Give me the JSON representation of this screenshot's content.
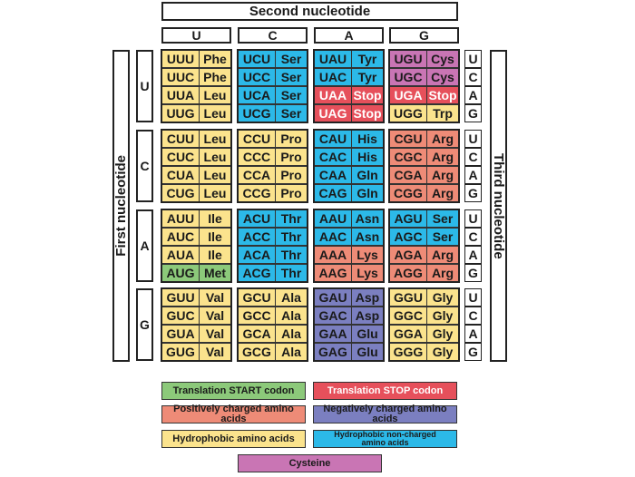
{
  "title": {
    "second": "Second nucleotide",
    "first": "First nucleotide",
    "third": "Third nucleotide"
  },
  "nucleotides": [
    "U",
    "C",
    "A",
    "G"
  ],
  "colors": {
    "hydrophobic": "#fbe38d",
    "polar": "#2cb9e8",
    "stop": "#e6505b",
    "positive": "#ee8b77",
    "negative": "#7b7fc0",
    "start": "#8cc97a",
    "cysteine": "#c975b4"
  },
  "table": [
    {
      "first": "U",
      "rows": [
        [
          {
            "codon": "UUU",
            "aa": "Phe",
            "cat": "hydrophobic"
          },
          {
            "codon": "UCU",
            "aa": "Ser",
            "cat": "polar"
          },
          {
            "codon": "UAU",
            "aa": "Tyr",
            "cat": "polar"
          },
          {
            "codon": "UGU",
            "aa": "Cys",
            "cat": "cysteine"
          }
        ],
        [
          {
            "codon": "UUC",
            "aa": "Phe",
            "cat": "hydrophobic"
          },
          {
            "codon": "UCC",
            "aa": "Ser",
            "cat": "polar"
          },
          {
            "codon": "UAC",
            "aa": "Tyr",
            "cat": "polar"
          },
          {
            "codon": "UGC",
            "aa": "Cys",
            "cat": "cysteine"
          }
        ],
        [
          {
            "codon": "UUA",
            "aa": "Leu",
            "cat": "hydrophobic"
          },
          {
            "codon": "UCA",
            "aa": "Ser",
            "cat": "polar"
          },
          {
            "codon": "UAA",
            "aa": "Stop",
            "cat": "stop"
          },
          {
            "codon": "UGA",
            "aa": "Stop",
            "cat": "stop"
          }
        ],
        [
          {
            "codon": "UUG",
            "aa": "Leu",
            "cat": "hydrophobic"
          },
          {
            "codon": "UCG",
            "aa": "Ser",
            "cat": "polar"
          },
          {
            "codon": "UAG",
            "aa": "Stop",
            "cat": "stop"
          },
          {
            "codon": "UGG",
            "aa": "Trp",
            "cat": "hydrophobic"
          }
        ]
      ]
    },
    {
      "first": "C",
      "rows": [
        [
          {
            "codon": "CUU",
            "aa": "Leu",
            "cat": "hydrophobic"
          },
          {
            "codon": "CCU",
            "aa": "Pro",
            "cat": "hydrophobic"
          },
          {
            "codon": "CAU",
            "aa": "His",
            "cat": "polar"
          },
          {
            "codon": "CGU",
            "aa": "Arg",
            "cat": "positive"
          }
        ],
        [
          {
            "codon": "CUC",
            "aa": "Leu",
            "cat": "hydrophobic"
          },
          {
            "codon": "CCC",
            "aa": "Pro",
            "cat": "hydrophobic"
          },
          {
            "codon": "CAC",
            "aa": "His",
            "cat": "polar"
          },
          {
            "codon": "CGC",
            "aa": "Arg",
            "cat": "positive"
          }
        ],
        [
          {
            "codon": "CUA",
            "aa": "Leu",
            "cat": "hydrophobic"
          },
          {
            "codon": "CCA",
            "aa": "Pro",
            "cat": "hydrophobic"
          },
          {
            "codon": "CAA",
            "aa": "Gln",
            "cat": "polar"
          },
          {
            "codon": "CGA",
            "aa": "Arg",
            "cat": "positive"
          }
        ],
        [
          {
            "codon": "CUG",
            "aa": "Leu",
            "cat": "hydrophobic"
          },
          {
            "codon": "CCG",
            "aa": "Pro",
            "cat": "hydrophobic"
          },
          {
            "codon": "CAG",
            "aa": "Gln",
            "cat": "polar"
          },
          {
            "codon": "CGG",
            "aa": "Arg",
            "cat": "positive"
          }
        ]
      ]
    },
    {
      "first": "A",
      "rows": [
        [
          {
            "codon": "AUU",
            "aa": "Ile",
            "cat": "hydrophobic"
          },
          {
            "codon": "ACU",
            "aa": "Thr",
            "cat": "polar"
          },
          {
            "codon": "AAU",
            "aa": "Asn",
            "cat": "polar"
          },
          {
            "codon": "AGU",
            "aa": "Ser",
            "cat": "polar"
          }
        ],
        [
          {
            "codon": "AUC",
            "aa": "Ile",
            "cat": "hydrophobic"
          },
          {
            "codon": "ACC",
            "aa": "Thr",
            "cat": "polar"
          },
          {
            "codon": "AAC",
            "aa": "Asn",
            "cat": "polar"
          },
          {
            "codon": "AGC",
            "aa": "Ser",
            "cat": "polar"
          }
        ],
        [
          {
            "codon": "AUA",
            "aa": "Ile",
            "cat": "hydrophobic"
          },
          {
            "codon": "ACA",
            "aa": "Thr",
            "cat": "polar"
          },
          {
            "codon": "AAA",
            "aa": "Lys",
            "cat": "positive"
          },
          {
            "codon": "AGA",
            "aa": "Arg",
            "cat": "positive"
          }
        ],
        [
          {
            "codon": "AUG",
            "aa": "Met",
            "cat": "start"
          },
          {
            "codon": "ACG",
            "aa": "Thr",
            "cat": "polar"
          },
          {
            "codon": "AAG",
            "aa": "Lys",
            "cat": "positive"
          },
          {
            "codon": "AGG",
            "aa": "Arg",
            "cat": "positive"
          }
        ]
      ]
    },
    {
      "first": "G",
      "rows": [
        [
          {
            "codon": "GUU",
            "aa": "Val",
            "cat": "hydrophobic"
          },
          {
            "codon": "GCU",
            "aa": "Ala",
            "cat": "hydrophobic"
          },
          {
            "codon": "GAU",
            "aa": "Asp",
            "cat": "negative"
          },
          {
            "codon": "GGU",
            "aa": "Gly",
            "cat": "hydrophobic"
          }
        ],
        [
          {
            "codon": "GUC",
            "aa": "Val",
            "cat": "hydrophobic"
          },
          {
            "codon": "GCC",
            "aa": "Ala",
            "cat": "hydrophobic"
          },
          {
            "codon": "GAC",
            "aa": "Asp",
            "cat": "negative"
          },
          {
            "codon": "GGC",
            "aa": "Gly",
            "cat": "hydrophobic"
          }
        ],
        [
          {
            "codon": "GUA",
            "aa": "Val",
            "cat": "hydrophobic"
          },
          {
            "codon": "GCA",
            "aa": "Ala",
            "cat": "hydrophobic"
          },
          {
            "codon": "GAA",
            "aa": "Glu",
            "cat": "negative"
          },
          {
            "codon": "GGA",
            "aa": "Gly",
            "cat": "hydrophobic"
          }
        ],
        [
          {
            "codon": "GUG",
            "aa": "Val",
            "cat": "hydrophobic"
          },
          {
            "codon": "GCG",
            "aa": "Ala",
            "cat": "hydrophobic"
          },
          {
            "codon": "GAG",
            "aa": "Glu",
            "cat": "negative"
          },
          {
            "codon": "GGG",
            "aa": "Gly",
            "cat": "hydrophobic"
          }
        ]
      ]
    }
  ],
  "legend": [
    {
      "label": "Translation START codon",
      "cat": "start"
    },
    {
      "label": "Translation STOP codon",
      "cat": "stop"
    },
    {
      "label": "Positively charged amino acids",
      "cat": "positive"
    },
    {
      "label": "Negatively charged amino acids",
      "cat": "negative"
    },
    {
      "label": "Hydrophobic amino acids",
      "cat": "hydrophobic"
    },
    {
      "label": "Hydrophobic non-charged amino acids",
      "cat": "polar"
    },
    {
      "label": "Cysteine",
      "cat": "cysteine"
    }
  ]
}
